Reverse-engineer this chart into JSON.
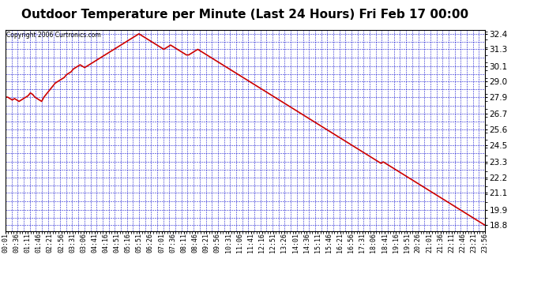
{
  "title": "Outdoor Temperature per Minute (Last 24 Hours) Fri Feb 17 00:00",
  "copyright": "Copyright 2006 Curtronics.com",
  "yticks": [
    18.8,
    19.9,
    21.1,
    22.2,
    23.3,
    24.5,
    25.6,
    26.7,
    27.9,
    29.0,
    30.1,
    31.3,
    32.4
  ],
  "ymin": 18.4,
  "ymax": 32.7,
  "xtick_labels": [
    "00:01",
    "00:36",
    "01:11",
    "01:46",
    "02:21",
    "02:56",
    "03:31",
    "03:06",
    "04:41",
    "04:16",
    "04:51",
    "05:16",
    "05:51",
    "06:26",
    "07:01",
    "07:36",
    "08:11",
    "08:46",
    "09:21",
    "09:56",
    "10:31",
    "11:06",
    "11:41",
    "12:16",
    "12:51",
    "13:26",
    "14:01",
    "14:36",
    "15:11",
    "15:46",
    "16:21",
    "16:56",
    "17:31",
    "18:06",
    "18:41",
    "19:16",
    "19:51",
    "20:26",
    "21:01",
    "21:36",
    "22:11",
    "22:46",
    "23:21",
    "23:56"
  ],
  "background_color": "#ffffff",
  "plot_bg_color": "#ffffff",
  "grid_color": "#0000cc",
  "line_color": "#cc0000",
  "title_fontsize": 11,
  "data_y": [
    27.9,
    27.9,
    27.8,
    27.7,
    27.8,
    27.7,
    27.6,
    27.7,
    27.8,
    27.9,
    28.0,
    28.2,
    28.1,
    27.9,
    27.8,
    27.7,
    27.6,
    27.9,
    28.1,
    28.3,
    28.5,
    28.7,
    28.9,
    29.0,
    29.1,
    29.2,
    29.3,
    29.5,
    29.6,
    29.7,
    29.9,
    30.0,
    30.1,
    30.2,
    30.1,
    30.0,
    30.1,
    30.2,
    30.3,
    30.4,
    30.5,
    30.6,
    30.7,
    30.8,
    30.9,
    31.0,
    31.1,
    31.2,
    31.3,
    31.4,
    31.5,
    31.6,
    31.7,
    31.8,
    31.9,
    32.0,
    32.1,
    32.2,
    32.3,
    32.4,
    32.3,
    32.2,
    32.1,
    32.0,
    31.9,
    31.8,
    31.7,
    31.6,
    31.5,
    31.4,
    31.3,
    31.4,
    31.5,
    31.6,
    31.5,
    31.4,
    31.3,
    31.2,
    31.1,
    31.0,
    30.9,
    30.9,
    31.0,
    31.1,
    31.2,
    31.3,
    31.2,
    31.1,
    31.0,
    30.9,
    30.8,
    30.7,
    30.6,
    30.5,
    30.4,
    30.3,
    30.2,
    30.1,
    30.0,
    29.9,
    29.8,
    29.7,
    29.6,
    29.5,
    29.4,
    29.3,
    29.2,
    29.1,
    29.0,
    28.9,
    28.8,
    28.7,
    28.6,
    28.5,
    28.4,
    28.3,
    28.2,
    28.1,
    28.0,
    27.9,
    27.8,
    27.7,
    27.6,
    27.5,
    27.4,
    27.3,
    27.2,
    27.1,
    27.0,
    26.9,
    26.8,
    26.7,
    26.6,
    26.5,
    26.4,
    26.3,
    26.2,
    26.1,
    26.0,
    25.9,
    25.8,
    25.7,
    25.6,
    25.5,
    25.4,
    25.3,
    25.2,
    25.1,
    25.0,
    24.9,
    24.8,
    24.7,
    24.6,
    24.5,
    24.4,
    24.3,
    24.2,
    24.1,
    24.0,
    23.9,
    23.8,
    23.7,
    23.6,
    23.5,
    23.4,
    23.3,
    23.2,
    23.3,
    23.2,
    23.1,
    23.0,
    22.9,
    22.8,
    22.7,
    22.6,
    22.5,
    22.4,
    22.3,
    22.2,
    22.1,
    22.0,
    21.9,
    21.8,
    21.7,
    21.6,
    21.5,
    21.4,
    21.3,
    21.2,
    21.1,
    21.0,
    20.9,
    20.8,
    20.7,
    20.6,
    20.5,
    20.4,
    20.3,
    20.2,
    20.1,
    20.0,
    19.9,
    19.8,
    19.7,
    19.6,
    19.5,
    19.4,
    19.3,
    19.2,
    19.1,
    19.0,
    18.9,
    18.8
  ]
}
